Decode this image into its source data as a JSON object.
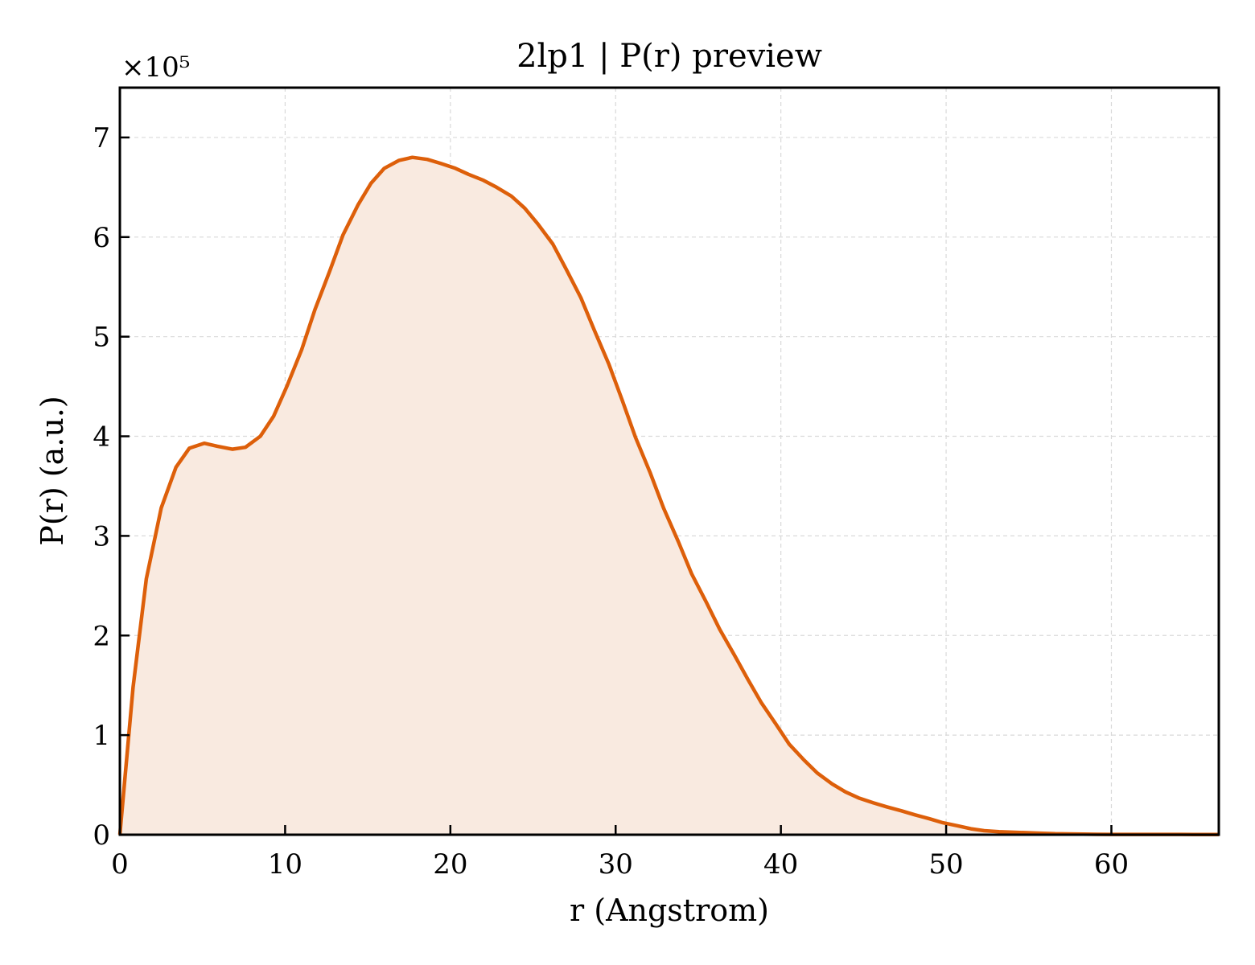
{
  "chart_data": {
    "type": "area",
    "title": "2lp1 | P(r) preview",
    "xlabel": "r (Angstrom)",
    "ylabel": "P(r) (a.u.)",
    "y_multiplier_label": "×10⁵",
    "xlim": [
      0,
      66.5
    ],
    "ylim": [
      0,
      7.5
    ],
    "x_ticks": [
      0,
      10,
      20,
      30,
      40,
      50,
      60
    ],
    "y_ticks": [
      0,
      1,
      2,
      3,
      4,
      5,
      6,
      7
    ],
    "grid": true,
    "line_color": "#dd5f0a",
    "fill_color": "#f9eae0",
    "series": [
      {
        "x": [
          0,
          0.8,
          1.6,
          2.5,
          3.4,
          4.2,
          5.1,
          5.9,
          6.8,
          7.6,
          8.5,
          9.3,
          10.1,
          11.0,
          11.8,
          12.7,
          13.5,
          14.4,
          15.2,
          16.0,
          16.9,
          17.7,
          18.6,
          19.4,
          20.3,
          21.1,
          22.0,
          22.8,
          23.7,
          24.5,
          25.3,
          26.2,
          27.0,
          27.9,
          28.7,
          29.6,
          30.4,
          31.2,
          32.1,
          32.9,
          33.8,
          34.6,
          35.5,
          36.3,
          37.2,
          38.0,
          38.8,
          39.7,
          40.5,
          41.4,
          42.2,
          43.1,
          43.9,
          44.7,
          45.6,
          46.4,
          47.3,
          48.1,
          49.0,
          49.8,
          50.7,
          51.5,
          52.3,
          53.2,
          54.0,
          54.9,
          55.7,
          56.6,
          57.4,
          58.3,
          59.1,
          59.9,
          60.8,
          61.6,
          62.5,
          63.3,
          64.2,
          65.0,
          66.5
        ],
        "values": [
          0,
          1.48,
          2.57,
          3.28,
          3.69,
          3.88,
          3.93,
          3.9,
          3.87,
          3.89,
          4.0,
          4.2,
          4.5,
          4.87,
          5.27,
          5.66,
          6.02,
          6.32,
          6.54,
          6.69,
          6.77,
          6.8,
          6.78,
          6.74,
          6.69,
          6.63,
          6.57,
          6.5,
          6.41,
          6.29,
          6.13,
          5.93,
          5.68,
          5.39,
          5.07,
          4.72,
          4.36,
          3.99,
          3.63,
          3.28,
          2.94,
          2.62,
          2.33,
          2.06,
          1.8,
          1.56,
          1.33,
          1.11,
          0.91,
          0.75,
          0.62,
          0.51,
          0.43,
          0.37,
          0.32,
          0.28,
          0.24,
          0.2,
          0.16,
          0.12,
          0.09,
          0.06,
          0.04,
          0.03,
          0.025,
          0.02,
          0.015,
          0.01,
          0.008,
          0.006,
          0.004,
          0.003,
          0.003,
          0.003,
          0.003,
          0.003,
          0.003,
          0.002,
          0.002
        ]
      }
    ]
  }
}
